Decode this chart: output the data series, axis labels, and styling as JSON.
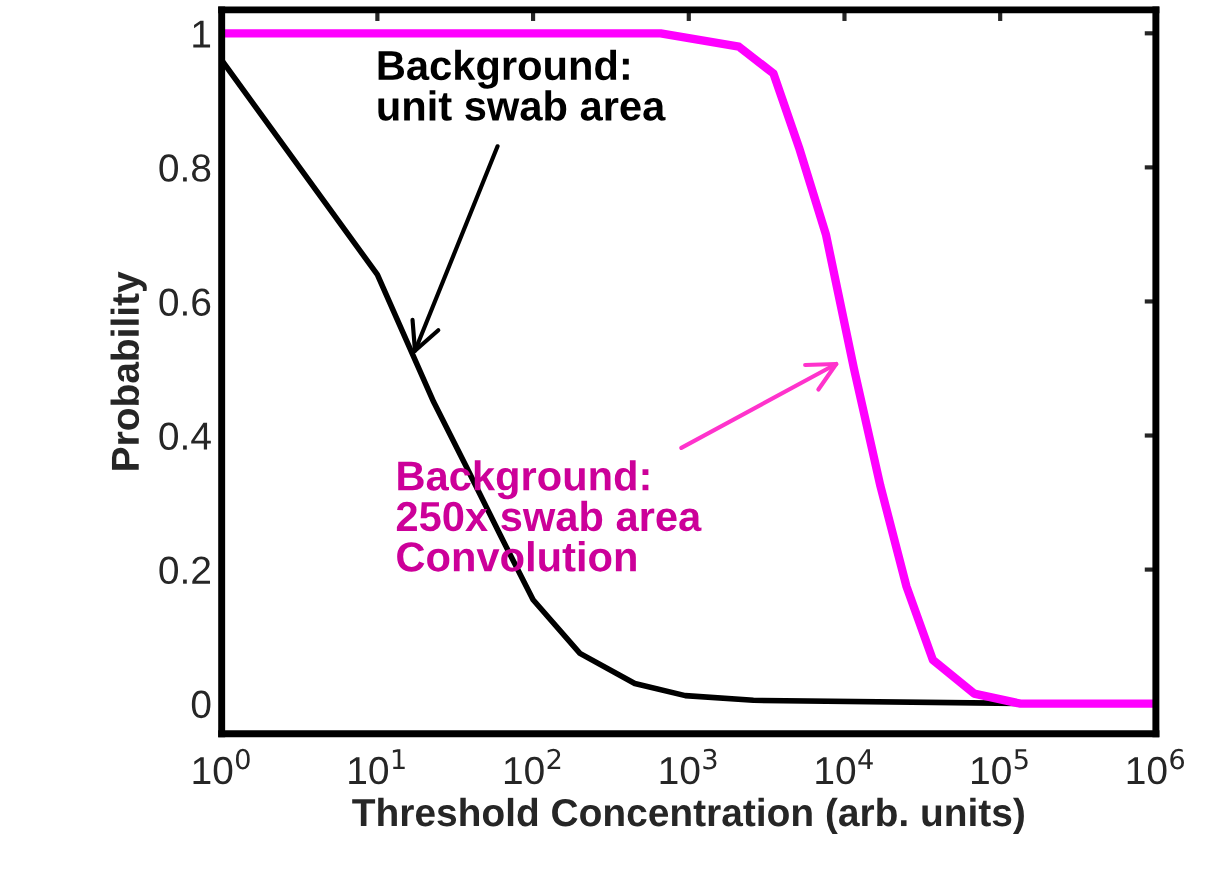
{
  "chart_data": {
    "type": "line",
    "xlabel": "Threshold Concentration (arb. units)",
    "ylabel": "Probability",
    "log": "x",
    "grid": false,
    "legend": false,
    "marker": "none",
    "line_style": "solid",
    "xlim": [
      1,
      1000000
    ],
    "ylim": [
      -0.045,
      1.035
    ],
    "xticks": [
      {
        "value": 1,
        "label": "10$^{0}$"
      },
      {
        "value": 10,
        "label": "10$^{1}$"
      },
      {
        "value": 100,
        "label": "10$^{2}$"
      },
      {
        "value": 1000,
        "label": "10$^{3}$"
      },
      {
        "value": 10000,
        "label": "10$^{4}$"
      },
      {
        "value": 100000,
        "label": "10$^{5}$"
      },
      {
        "value": 1000000,
        "label": "10$^{6}$"
      }
    ],
    "yticks": [
      0,
      0.2,
      0.4,
      0.6,
      0.8,
      1
    ],
    "series": [
      {
        "color": "#000000",
        "x": [
          1,
          10,
          23,
          37,
          62,
          100,
          200,
          450,
          950,
          2600,
          190000
        ],
        "values": [
          0.96,
          0.64,
          0.45,
          0.355,
          0.25,
          0.155,
          0.075,
          0.03,
          0.012,
          0.005,
          0
        ]
      },
      {
        "color": "#ff00ff",
        "x": [
          1,
          660,
          2100,
          3500,
          5100,
          7600,
          11500,
          17000,
          25000,
          37000,
          68000,
          135000,
          1000000
        ],
        "values": [
          1,
          1,
          0.98,
          0.94,
          0.83,
          0.7,
          0.5,
          0.325,
          0.175,
          0.065,
          0.015,
          0,
          0
        ]
      }
    ],
    "annotations": [
      {
        "text": "Background:\nunit swab area",
        "x": 17,
        "y": 0.52
      },
      {
        "text": "Background:\n250x swab area\nConvolution",
        "x": 9400,
        "y": 0.51
      }
    ]
  }
}
